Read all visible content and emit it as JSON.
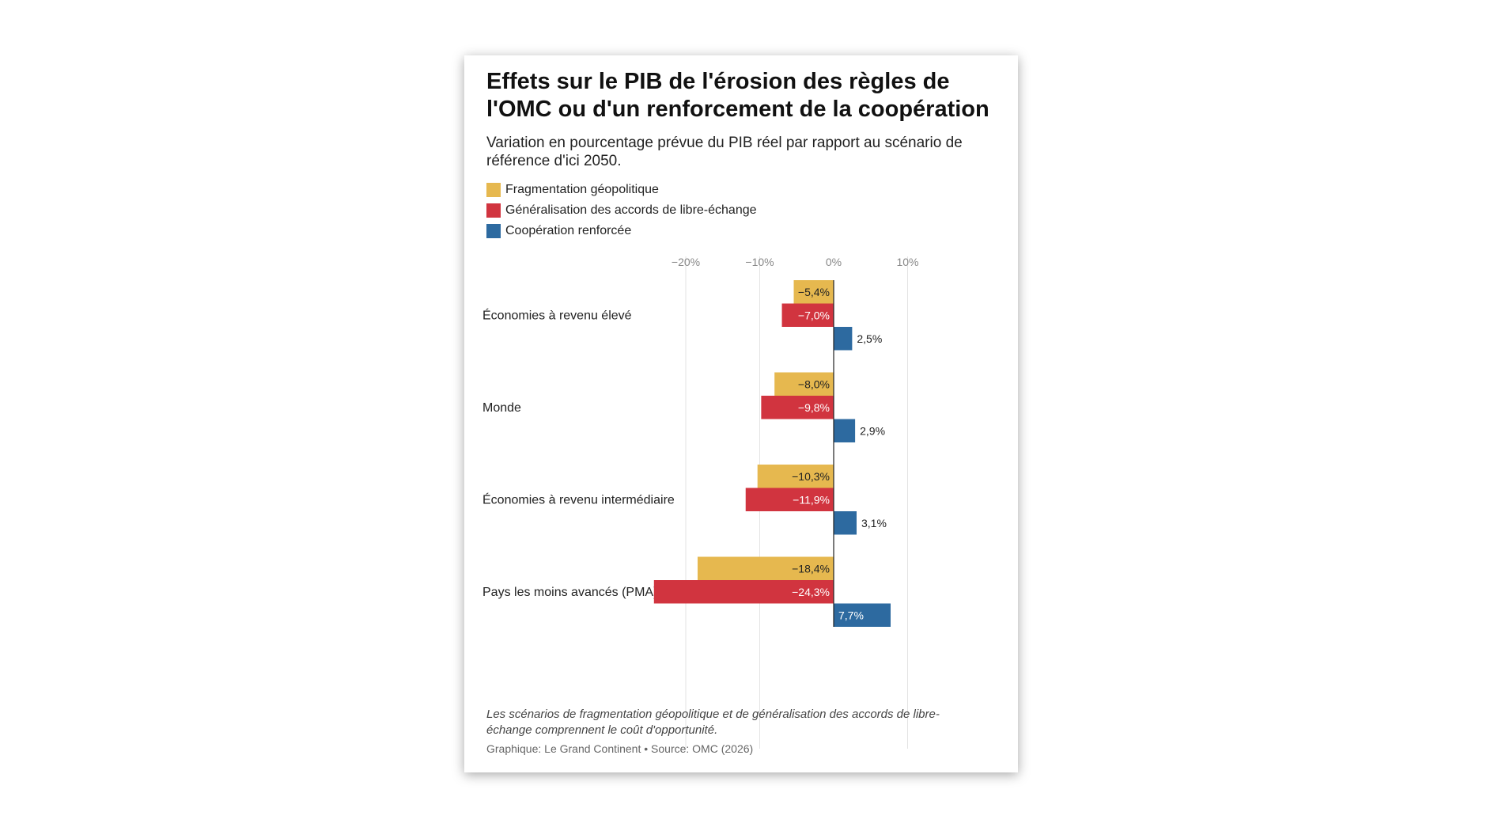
{
  "title": "Effets sur le PIB de l'érosion des règles de l'OMC ou d'un renforcement de la coopération",
  "subtitle": "Variation en pourcentage prévue du PIB réel par rapport au scénario de référence d'ici 2050.",
  "note": "Les scénarios de fragmentation géopolitique et de généralisation des accords de libre-échange comprennent le coût d'opportunité.",
  "source": "Graphique: Le Grand Continent • Source: OMC (2026)",
  "chart_data": {
    "type": "bar",
    "orientation": "horizontal",
    "title": "Effets sur le PIB de l'érosion des règles de l'OMC ou d'un renforcement de la coopération",
    "subtitle": "Variation en pourcentage prévue du PIB réel par rapport au scénario de référence d'ici 2050.",
    "categories": [
      "Économies à revenu élevé",
      "Monde",
      "Économies à revenu intermédiaire",
      "Pays les moins avancés (PMA)"
    ],
    "series": [
      {
        "name": "Fragmentation géopolitique",
        "color": "#e6b84f",
        "values": [
          -5.4,
          -8.0,
          -10.3,
          -18.4
        ],
        "labels": [
          "−5,4%",
          "−8,0%",
          "−10,3%",
          "−18,4%"
        ]
      },
      {
        "name": "Généralisation des accords de libre-échange",
        "color": "#d1343f",
        "values": [
          -7.0,
          -9.8,
          -11.9,
          -24.3
        ],
        "labels": [
          "−7,0%",
          "−9,8%",
          "−11,9%",
          "−24,3%"
        ]
      },
      {
        "name": "Coopération renforcée",
        "color": "#2d6aa0",
        "values": [
          2.5,
          2.9,
          3.1,
          7.7
        ],
        "labels": [
          "2,5%",
          "2,9%",
          "3,1%",
          "7,7%"
        ]
      }
    ],
    "xlim": [
      -25,
      10
    ],
    "ticks": [
      -20,
      -10,
      0,
      10
    ],
    "tick_labels": [
      "−20%",
      "−10%",
      "0%",
      "10%"
    ],
    "grid": true,
    "legend": "top-left"
  }
}
